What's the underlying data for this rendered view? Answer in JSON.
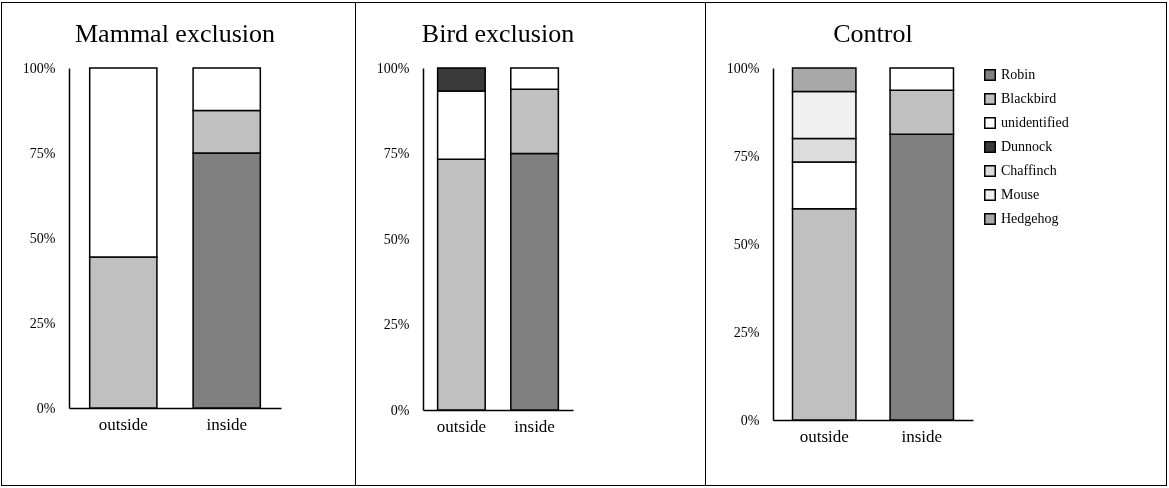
{
  "chart_data": [
    {
      "type": "bar",
      "title": "Mammal exclusion",
      "stacked": true,
      "categories": [
        "outside",
        "inside"
      ],
      "ylim": [
        0,
        100
      ],
      "yticks": [
        {
          "value": 0,
          "label": "0%"
        },
        {
          "value": 25,
          "label": "25%"
        },
        {
          "value": 50,
          "label": "50%"
        },
        {
          "value": 75,
          "label": "75%"
        },
        {
          "value": 100,
          "label": "100%"
        }
      ],
      "legend": false,
      "series": [
        {
          "color": "#808080",
          "values": [
            null,
            75
          ]
        },
        {
          "color": "#c0c0c0",
          "values": [
            44.4,
            12.5
          ]
        },
        {
          "color": "#ffffff",
          "values": [
            55.6,
            12.5
          ]
        }
      ]
    },
    {
      "type": "bar",
      "title": "Bird exclusion",
      "stacked": true,
      "categories": [
        "outside",
        "inside"
      ],
      "ylim": [
        0,
        100
      ],
      "yticks": [
        {
          "value": 0,
          "label": "0%"
        },
        {
          "value": 25,
          "label": "25%"
        },
        {
          "value": 50,
          "label": "50%"
        },
        {
          "value": 75,
          "label": "75%"
        },
        {
          "value": 100,
          "label": "100%"
        }
      ],
      "legend": false,
      "series": [
        {
          "color": "#808080",
          "values": [
            null,
            75
          ]
        },
        {
          "color": "#c0c0c0",
          "values": [
            73.3,
            18.8
          ]
        },
        {
          "color": "#ffffff",
          "values": [
            20,
            6.2
          ]
        },
        {
          "color": "#3a3a3a",
          "values": [
            6.7,
            null
          ]
        }
      ]
    },
    {
      "type": "bar",
      "title": "Control",
      "stacked": true,
      "categories": [
        "outside",
        "inside"
      ],
      "ylim": [
        0,
        100
      ],
      "yticks": [
        {
          "value": 0,
          "label": "0%"
        },
        {
          "value": 25,
          "label": "25%"
        },
        {
          "value": 50,
          "label": "50%"
        },
        {
          "value": 75,
          "label": "75%"
        },
        {
          "value": 100,
          "label": "100%"
        }
      ],
      "legend": "top right",
      "series": [
        {
          "name": "Robin",
          "color": "#808080",
          "values": [
            null,
            81.2
          ]
        },
        {
          "name": "Blackbird",
          "color": "#c0c0c0",
          "values": [
            60,
            12.5
          ]
        },
        {
          "name": "unidentified",
          "color": "#ffffff",
          "values": [
            13.3,
            6.3
          ]
        },
        {
          "name": "Dunnock",
          "color": "#3a3a3a",
          "values": [
            null,
            null
          ]
        },
        {
          "name": "Chaffinch",
          "color": "#dcdcdc",
          "values": [
            6.7,
            null
          ]
        },
        {
          "name": "Mouse",
          "color": "#f0f0f0",
          "values": [
            13.3,
            null
          ]
        },
        {
          "name": "Hedgehog",
          "color": "#a8a8a8",
          "values": [
            6.7,
            null
          ]
        }
      ]
    }
  ]
}
